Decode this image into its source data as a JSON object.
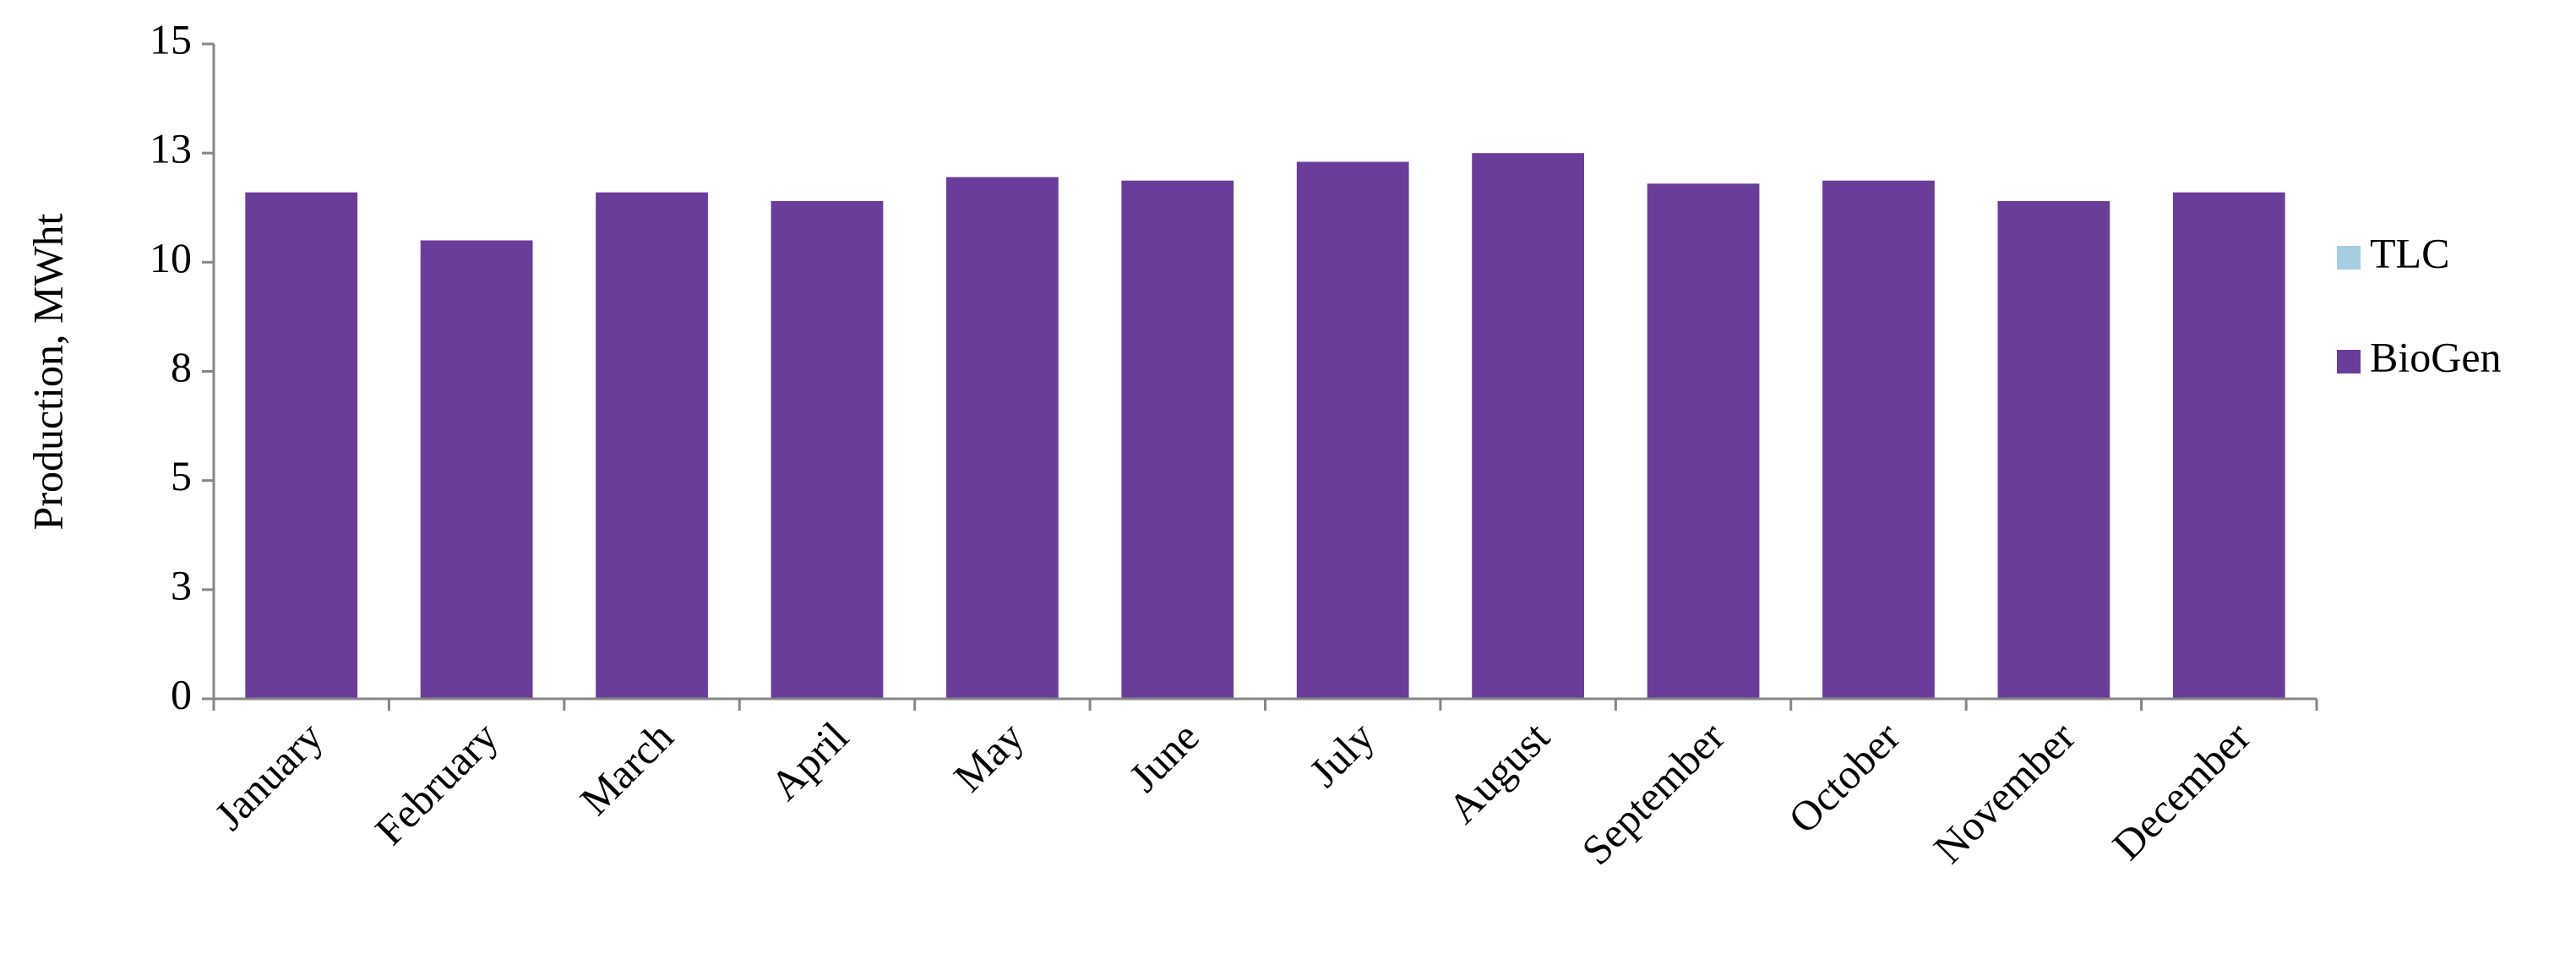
{
  "chart_data": {
    "type": "stacked_bar",
    "y_label": "Production, MWht",
    "categories": [
      "January",
      "February",
      "March",
      "April",
      "May",
      "June",
      "July",
      "August",
      "September",
      "October",
      "November",
      "December"
    ],
    "series": [
      {
        "name": "BioGen",
        "color": "#6a3d9a",
        "values": [
          11.6,
          10.5,
          11.6,
          11.4,
          11.95,
          11.87,
          12.3,
          12.5,
          11.8,
          11.87,
          11.4,
          11.6
        ]
      },
      {
        "name": "TLC",
        "color": "#a6cee3",
        "values": [
          0,
          0,
          0,
          0,
          0,
          0,
          0,
          0,
          0,
          0,
          0,
          0
        ]
      }
    ],
    "ylim": [
      0,
      15
    ],
    "yticks": [
      0,
      {
        "value": 2.5,
        "label": "3"
      },
      5,
      {
        "value": 7.5,
        "label": "8"
      },
      10,
      {
        "value": 12.5,
        "label": "13"
      },
      15
    ],
    "legend": "right"
  }
}
